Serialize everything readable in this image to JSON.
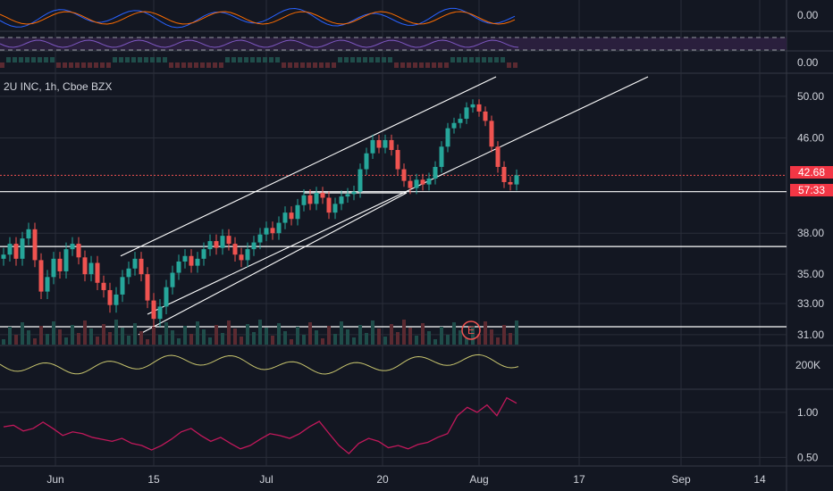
{
  "symbol": {
    "title": "2U INC, 1h, Cboe BZX"
  },
  "price": {
    "last": "42.68",
    "countdown": "57:33",
    "color": "#f23645"
  },
  "earnings_marker": {
    "label": "E"
  },
  "colors": {
    "bg": "#131722",
    "grid": "#2a2e39",
    "up": "#26a69a",
    "down": "#ef5350",
    "channel": "#ffffff",
    "indicator1": "#c8c56e",
    "indicator2": "#c2185b"
  },
  "chart_data": {
    "type": "candlestick",
    "x_tick_labels": [
      "Jun",
      "15",
      "Jul",
      "20",
      "Aug",
      "17",
      "Sep",
      "14"
    ],
    "price_axis": {
      "ticks": [
        "50.00",
        "46.00",
        "38.00",
        "35.00",
        "33.00",
        "31.00"
      ],
      "scale": "log",
      "ylim": [
        30.5,
        52
      ]
    },
    "osc1_axis": {
      "ticks": [
        "0.00"
      ]
    },
    "osc2_axis": {
      "ticks": [
        "0.00"
      ]
    },
    "volume_axis": {
      "ticks": [
        "200K"
      ]
    },
    "ratio_axis": {
      "ticks": [
        "1.00",
        "0.50"
      ]
    },
    "horizontal_levels": [
      42.68,
      41.3,
      37.0,
      31.5
    ],
    "series_close": [
      36.4,
      37.2,
      36.1,
      37.6,
      38.3,
      36.0,
      33.8,
      34.8,
      36.1,
      35.2,
      36.8,
      37.2,
      36.2,
      35.0,
      35.8,
      34.4,
      33.9,
      32.9,
      33.6,
      34.8,
      35.4,
      36.1,
      35.0,
      33.2,
      32.0,
      32.8,
      34.1,
      35.1,
      35.9,
      36.3,
      35.6,
      36.1,
      36.8,
      37.4,
      36.9,
      37.8,
      37.2,
      36.4,
      36.0,
      36.8,
      37.3,
      37.9,
      38.4,
      38.0,
      38.8,
      39.6,
      39.1,
      40.2,
      41.0,
      40.3,
      41.2,
      40.8,
      39.6,
      40.3,
      40.9,
      41.1,
      41.3,
      43.2,
      44.6,
      45.8,
      45.1,
      45.8,
      44.9,
      43.2,
      42.2,
      41.6,
      42.3,
      41.9,
      42.4,
      43.4,
      45.2,
      46.9,
      47.4,
      47.8,
      48.9,
      49.2,
      48.5,
      47.6,
      45.2,
      43.4,
      42.1,
      41.9,
      42.68
    ],
    "ratio_series": [
      0.8,
      0.82,
      0.75,
      0.78,
      0.86,
      0.78,
      0.7,
      0.74,
      0.72,
      0.68,
      0.66,
      0.64,
      0.67,
      0.62,
      0.6,
      0.56,
      0.6,
      0.66,
      0.74,
      0.78,
      0.7,
      0.64,
      0.68,
      0.62,
      0.57,
      0.6,
      0.66,
      0.72,
      0.7,
      0.67,
      0.72,
      0.8,
      0.87,
      0.72,
      0.6,
      0.53,
      0.62,
      0.67,
      0.64,
      0.58,
      0.6,
      0.57,
      0.61,
      0.63,
      0.68,
      0.72,
      0.95,
      1.08,
      1.0,
      1.12,
      0.95,
      1.25,
      1.15
    ]
  }
}
